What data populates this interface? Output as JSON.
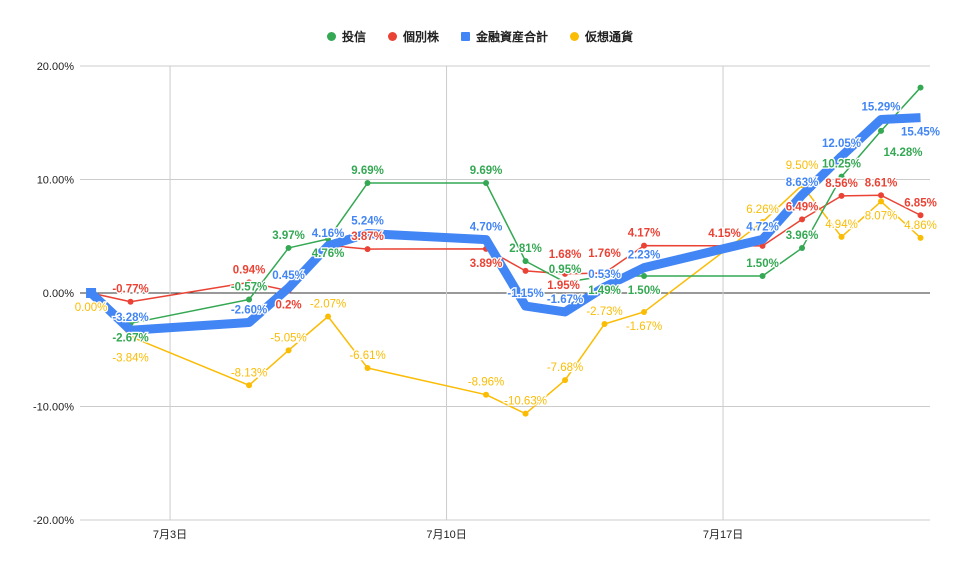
{
  "chart_data": {
    "type": "line",
    "title": "",
    "xlabel": "",
    "ylabel": "",
    "legend_position": "top",
    "grid": true,
    "ylim": [
      -20,
      20
    ],
    "y_ticks": [
      20,
      10,
      0,
      -10,
      -20
    ],
    "y_tick_labels": [
      "20.00%",
      "10.00%",
      "0.00%",
      "-10.00%",
      "-20.00%"
    ],
    "x_tick_days": [
      3,
      10,
      17
    ],
    "x_tick_labels": [
      "7月3日",
      "7月10日",
      "7月17日"
    ],
    "x_days": [
      1,
      2,
      5,
      6,
      7,
      8,
      11,
      12,
      13,
      14,
      15,
      18,
      19,
      20,
      21,
      22
    ],
    "series": [
      {
        "name": "投信",
        "color": "#34a853",
        "marker": "circle",
        "width": 1.5,
        "bold": true,
        "values": [
          0,
          -2.67,
          -0.57,
          3.97,
          4.76,
          9.69,
          9.69,
          2.81,
          0.95,
          1.49,
          1.5,
          1.5,
          3.96,
          10.25,
          14.28,
          18.1
        ],
        "labels": [
          "",
          "-2.67%",
          "-0.57%",
          "3.97%",
          "4.76%",
          "9.69%",
          "9.69%",
          "2.81%",
          "0.95%",
          "1.49%",
          "1.50%",
          "1.50%",
          "3.96%",
          "10.25%",
          "14.28%",
          ""
        ]
      },
      {
        "name": "個別株",
        "color": "#ea4335",
        "marker": "circle",
        "width": 1.5,
        "bold": true,
        "values": [
          0,
          -0.77,
          0.94,
          0.2,
          4.2,
          3.87,
          3.89,
          1.95,
          1.68,
          1.76,
          4.17,
          4.15,
          6.49,
          8.56,
          8.61,
          6.85
        ],
        "labels": [
          "",
          "-0.77%",
          "0.94%",
          "0.2%",
          "",
          "3.87%",
          "3.89%",
          "1.95%",
          "1.68%",
          "1.76%",
          "4.17%",
          "4.15%",
          "6.49%",
          "8.56%",
          "8.61%",
          "6.85%"
        ]
      },
      {
        "name": "金融資産合計",
        "color": "#4285f4",
        "marker": "square",
        "width": 9,
        "bold": true,
        "values": [
          0,
          -3.28,
          -2.6,
          0.45,
          4.16,
          5.24,
          4.7,
          -1.15,
          -1.67,
          0.53,
          2.23,
          4.72,
          8.63,
          12.05,
          15.29,
          15.45
        ],
        "labels": [
          "",
          "-3.28%",
          "-2.60%",
          "0.45%",
          "4.16%",
          "5.24%",
          "4.70%",
          "-1.15%",
          "-1.67%",
          "0.53%",
          "2.23%",
          "4.72%",
          "8.63%",
          "12.05%",
          "15.29%",
          "15.45%"
        ]
      },
      {
        "name": "仮想通貨",
        "color": "#fbbc04",
        "marker": "circle",
        "width": 1.5,
        "bold": false,
        "values": [
          0,
          -3.84,
          -8.13,
          -5.05,
          -2.07,
          -6.61,
          -8.96,
          -10.63,
          -7.68,
          -2.73,
          -1.67,
          6.26,
          9.5,
          4.94,
          8.07,
          4.86
        ],
        "labels": [
          "0.00%",
          "-3.84%",
          "-8.13%",
          "-5.05%",
          "-2.07%",
          "-6.61%",
          "-8.96%",
          "-10.63%",
          "-7.68%",
          "-2.73%",
          "-1.67%",
          "6.26%",
          "9.50%",
          "4.94%",
          "8.07%",
          "4.86%"
        ]
      }
    ]
  }
}
